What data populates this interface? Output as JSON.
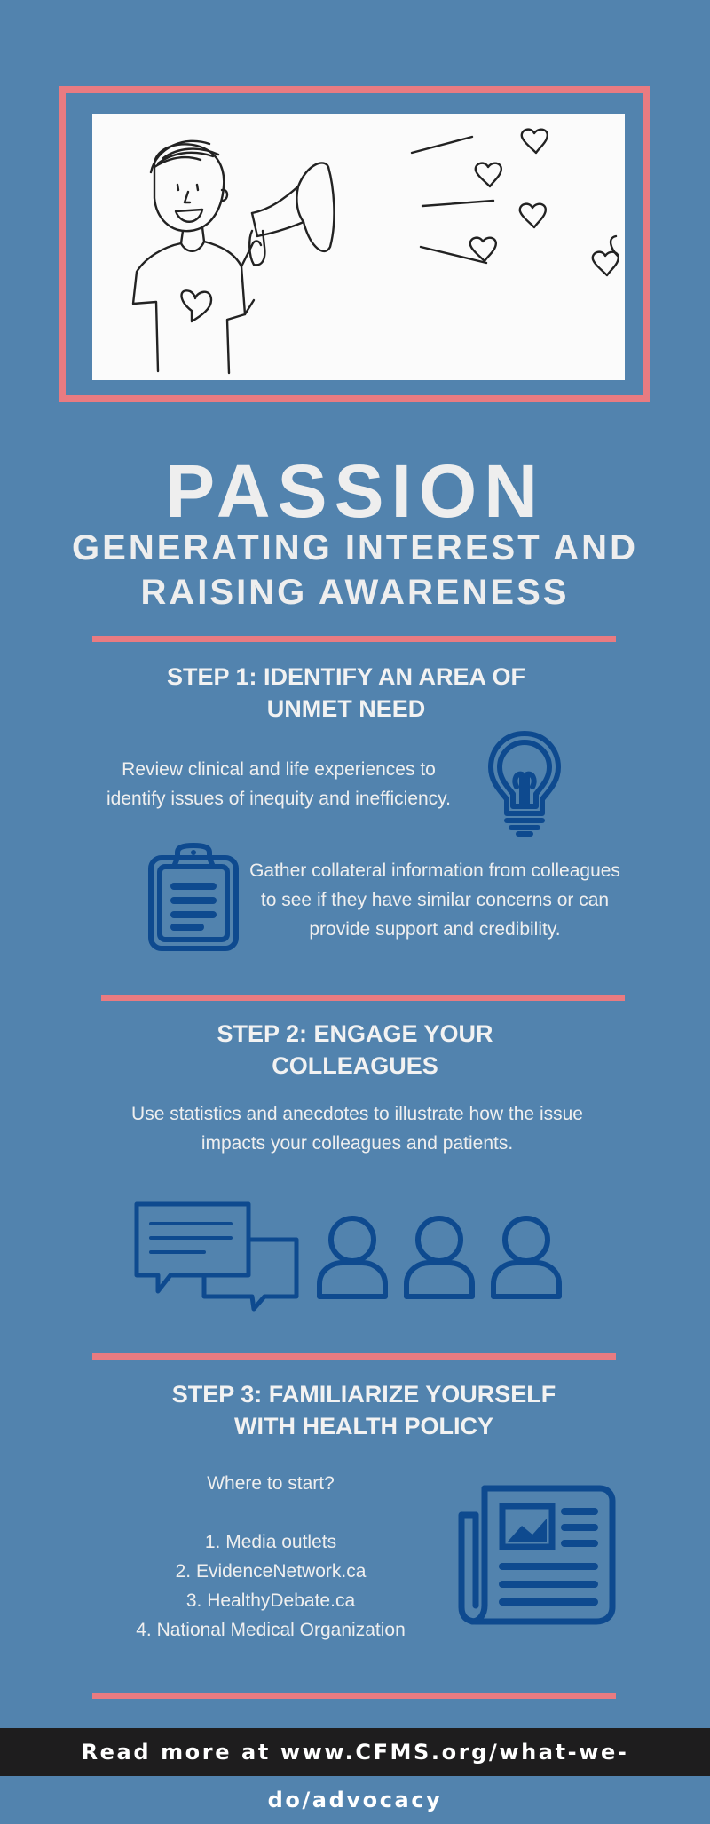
{
  "header": {
    "title": "PASSION",
    "subtitle": "GENERATING INTEREST AND RAISING AWARENESS"
  },
  "step1": {
    "title": "STEP 1: IDENTIFY AN AREA OF UNMET NEED",
    "text_a": "Review clinical and life experiences to identify issues of inequity and inefficiency.",
    "text_b": "Gather collateral information from colleagues to see if they have similar concerns or can provide support and credibility."
  },
  "step2": {
    "title": "STEP 2: ENGAGE YOUR COLLEAGUES",
    "text": "Use statistics and anecdotes to illustrate how the issue impacts your colleagues and patients."
  },
  "step3": {
    "title": "STEP 3: FAMILIARIZE YOURSELF WITH HEALTH POLICY",
    "intro": "Where to start?",
    "items": [
      "1. Media outlets",
      "2. EvidenceNetwork.ca",
      "3. HealthyDebate.ca",
      "4. National Medical Organization"
    ]
  },
  "footer": {
    "text": "Read more at www.CFMS.org/what-we-do/advocacy"
  },
  "colors": {
    "background": "#5283ae",
    "accent": "#e97b81",
    "icon": "#0e4a8f",
    "footer": "#1e1d1e"
  },
  "icons": [
    "lightbulb-icon",
    "clipboard-icon",
    "chat-bubbles-icon",
    "person-icon",
    "newspaper-icon"
  ]
}
